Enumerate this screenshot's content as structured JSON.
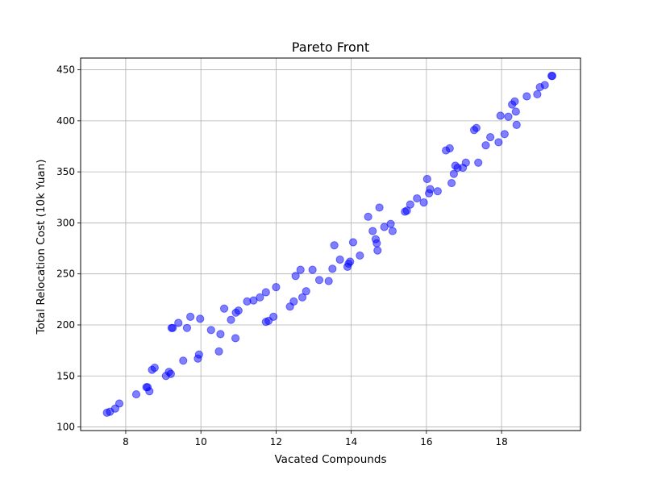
{
  "chart_data": {
    "type": "scatter",
    "title": "Pareto Front",
    "xlabel": "Vacated Compounds",
    "ylabel": "Total Relocation Cost (10k Yuan)",
    "xlim": [
      6.8,
      20.1
    ],
    "ylim": [
      96.5,
      461.5
    ],
    "xticks": [
      8,
      10,
      12,
      14,
      16,
      18
    ],
    "yticks": [
      100,
      150,
      200,
      250,
      300,
      350,
      400,
      450
    ],
    "grid": true,
    "legend": "none",
    "marker_color": "#0000ff",
    "marker_alpha": 0.5,
    "points": [
      [
        7.5,
        114
      ],
      [
        7.58,
        115
      ],
      [
        7.72,
        118
      ],
      [
        7.83,
        123
      ],
      [
        8.28,
        132
      ],
      [
        8.55,
        139
      ],
      [
        8.58,
        139
      ],
      [
        8.63,
        135
      ],
      [
        8.7,
        156
      ],
      [
        8.77,
        158
      ],
      [
        9.07,
        150
      ],
      [
        9.15,
        154
      ],
      [
        9.2,
        152
      ],
      [
        9.22,
        197
      ],
      [
        9.25,
        197
      ],
      [
        9.4,
        202
      ],
      [
        9.53,
        165
      ],
      [
        9.63,
        197
      ],
      [
        9.72,
        208
      ],
      [
        9.92,
        167
      ],
      [
        9.95,
        171
      ],
      [
        9.98,
        206
      ],
      [
        10.27,
        195
      ],
      [
        10.48,
        174
      ],
      [
        10.52,
        191
      ],
      [
        10.62,
        216
      ],
      [
        10.8,
        205
      ],
      [
        10.92,
        187
      ],
      [
        10.93,
        212
      ],
      [
        11.0,
        214
      ],
      [
        11.23,
        223
      ],
      [
        11.4,
        224
      ],
      [
        11.57,
        227
      ],
      [
        11.73,
        232
      ],
      [
        11.73,
        203
      ],
      [
        11.8,
        204
      ],
      [
        11.93,
        208
      ],
      [
        12.0,
        237
      ],
      [
        12.37,
        218
      ],
      [
        12.47,
        223
      ],
      [
        12.52,
        248
      ],
      [
        12.65,
        254
      ],
      [
        12.7,
        227
      ],
      [
        12.8,
        233
      ],
      [
        12.97,
        254
      ],
      [
        13.15,
        244
      ],
      [
        13.4,
        243
      ],
      [
        13.5,
        255
      ],
      [
        13.55,
        278
      ],
      [
        13.7,
        264
      ],
      [
        13.9,
        257
      ],
      [
        13.93,
        260
      ],
      [
        13.97,
        262
      ],
      [
        14.05,
        281
      ],
      [
        14.23,
        268
      ],
      [
        14.45,
        306
      ],
      [
        14.57,
        292
      ],
      [
        14.65,
        284
      ],
      [
        14.68,
        280
      ],
      [
        14.7,
        273
      ],
      [
        14.75,
        315
      ],
      [
        14.88,
        296
      ],
      [
        15.05,
        299
      ],
      [
        15.1,
        292
      ],
      [
        15.43,
        311
      ],
      [
        15.48,
        312
      ],
      [
        15.57,
        318
      ],
      [
        15.75,
        324
      ],
      [
        15.93,
        320
      ],
      [
        16.02,
        343
      ],
      [
        16.07,
        329
      ],
      [
        16.1,
        333
      ],
      [
        16.3,
        331
      ],
      [
        16.52,
        371
      ],
      [
        16.62,
        373
      ],
      [
        16.67,
        339
      ],
      [
        16.73,
        348
      ],
      [
        16.77,
        356
      ],
      [
        16.83,
        354
      ],
      [
        16.97,
        354
      ],
      [
        17.05,
        359
      ],
      [
        17.27,
        391
      ],
      [
        17.33,
        393
      ],
      [
        17.38,
        359
      ],
      [
        17.58,
        376
      ],
      [
        17.7,
        384
      ],
      [
        17.92,
        379
      ],
      [
        17.97,
        405
      ],
      [
        18.08,
        387
      ],
      [
        18.18,
        404
      ],
      [
        18.28,
        416
      ],
      [
        18.35,
        419
      ],
      [
        18.38,
        409
      ],
      [
        18.4,
        396
      ],
      [
        18.67,
        424
      ],
      [
        18.95,
        426
      ],
      [
        19.02,
        433
      ],
      [
        19.15,
        435
      ],
      [
        19.33,
        444
      ],
      [
        19.35,
        444
      ]
    ]
  }
}
